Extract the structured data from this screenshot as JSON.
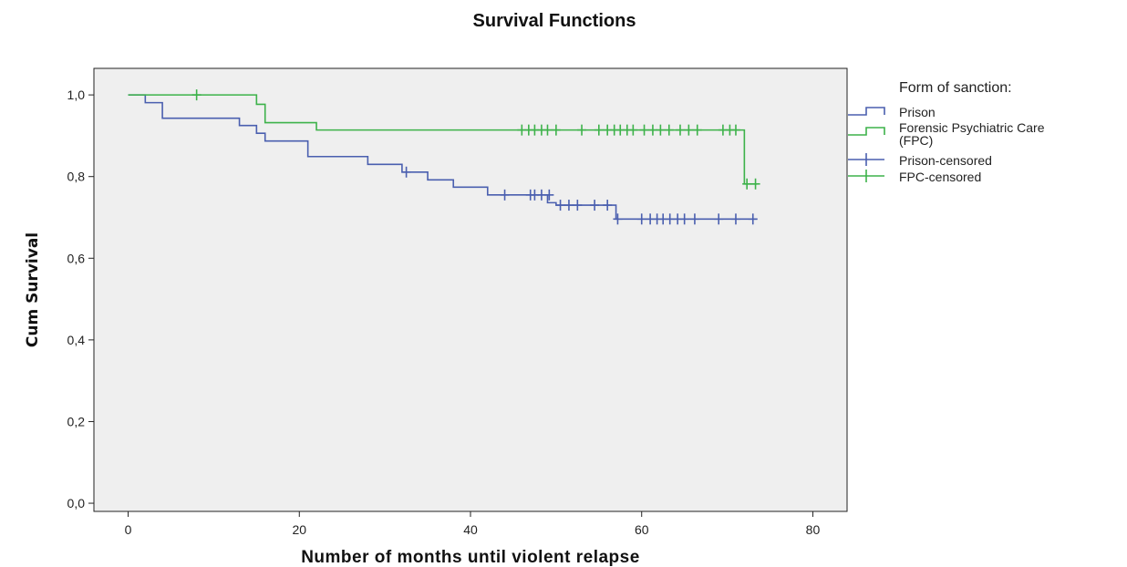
{
  "chart_data": {
    "type": "line",
    "title": "Survival Functions",
    "xlabel": "Number of months until violent relapse",
    "ylabel": "Cum Survival",
    "xlim": [
      -4,
      84
    ],
    "ylim": [
      -0.02,
      1.065
    ],
    "x_ticks": [
      0,
      20,
      40,
      60,
      80
    ],
    "x_tick_labels": [
      "0",
      "20",
      "40",
      "60",
      "80"
    ],
    "y_ticks": [
      0,
      0.2,
      0.4,
      0.6,
      0.8,
      1.0
    ],
    "y_tick_labels": [
      "0,0",
      "0,2",
      "0,4",
      "0,6",
      "0,8",
      "1,0"
    ],
    "grid": false,
    "legend_position": "right",
    "legend_title": "Form of sanction:",
    "legend": [
      {
        "label": "Prison",
        "color": "#4a5faf",
        "kind": "step"
      },
      {
        "label": "Forensic Psychiatric Care (FPC)",
        "label_lines": [
          "Forensic Psychiatric Care",
          "(FPC)"
        ],
        "color": "#3db24a",
        "kind": "step"
      },
      {
        "label": "Prison-censored",
        "color": "#4a5faf",
        "kind": "censor"
      },
      {
        "label": "FPC-censored",
        "color": "#3db24a",
        "kind": "censor"
      }
    ],
    "series": [
      {
        "name": "Prison",
        "color": "#4a5faf",
        "steps": [
          [
            0,
            1.0
          ],
          [
            2,
            0.981
          ],
          [
            4,
            0.943
          ],
          [
            13,
            0.925
          ],
          [
            15,
            0.906
          ],
          [
            16,
            0.887
          ],
          [
            21,
            0.849
          ],
          [
            28,
            0.83
          ],
          [
            32,
            0.811
          ],
          [
            35,
            0.792
          ],
          [
            38,
            0.774
          ],
          [
            42,
            0.755
          ],
          [
            49,
            0.736
          ],
          [
            50,
            0.73
          ],
          [
            57,
            0.696
          ],
          [
            73.5,
            0.696
          ]
        ],
        "censored": [
          [
            32.5,
            0.811
          ],
          [
            44,
            0.755
          ],
          [
            47,
            0.755
          ],
          [
            47.5,
            0.755
          ],
          [
            48.3,
            0.755
          ],
          [
            49.2,
            0.755
          ],
          [
            50.5,
            0.73
          ],
          [
            51.5,
            0.73
          ],
          [
            52.5,
            0.73
          ],
          [
            54.5,
            0.73
          ],
          [
            56,
            0.73
          ],
          [
            57.2,
            0.696
          ],
          [
            60,
            0.696
          ],
          [
            61,
            0.696
          ],
          [
            61.8,
            0.696
          ],
          [
            62.5,
            0.696
          ],
          [
            63.3,
            0.696
          ],
          [
            64.2,
            0.696
          ],
          [
            65,
            0.696
          ],
          [
            66.2,
            0.696
          ],
          [
            69,
            0.696
          ],
          [
            71,
            0.696
          ],
          [
            73,
            0.696
          ]
        ]
      },
      {
        "name": "Forensic Psychiatric Care (FPC)",
        "color": "#3db24a",
        "steps": [
          [
            0,
            1.0
          ],
          [
            15,
            0.977
          ],
          [
            16,
            0.932
          ],
          [
            22,
            0.914
          ],
          [
            72,
            0.782
          ],
          [
            73.5,
            0.782
          ]
        ],
        "censored": [
          [
            8,
            1.0
          ],
          [
            46,
            0.914
          ],
          [
            46.8,
            0.914
          ],
          [
            47.5,
            0.914
          ],
          [
            48.3,
            0.914
          ],
          [
            49,
            0.914
          ],
          [
            50,
            0.914
          ],
          [
            53,
            0.914
          ],
          [
            55,
            0.914
          ],
          [
            56,
            0.914
          ],
          [
            56.8,
            0.914
          ],
          [
            57.5,
            0.914
          ],
          [
            58.3,
            0.914
          ],
          [
            59,
            0.914
          ],
          [
            60.3,
            0.914
          ],
          [
            61.3,
            0.914
          ],
          [
            62.2,
            0.914
          ],
          [
            63.2,
            0.914
          ],
          [
            64.5,
            0.914
          ],
          [
            65.5,
            0.914
          ],
          [
            66.5,
            0.914
          ],
          [
            69.5,
            0.914
          ],
          [
            70.3,
            0.914
          ],
          [
            71,
            0.914
          ],
          [
            72.3,
            0.782
          ],
          [
            73.3,
            0.782
          ]
        ]
      }
    ]
  }
}
